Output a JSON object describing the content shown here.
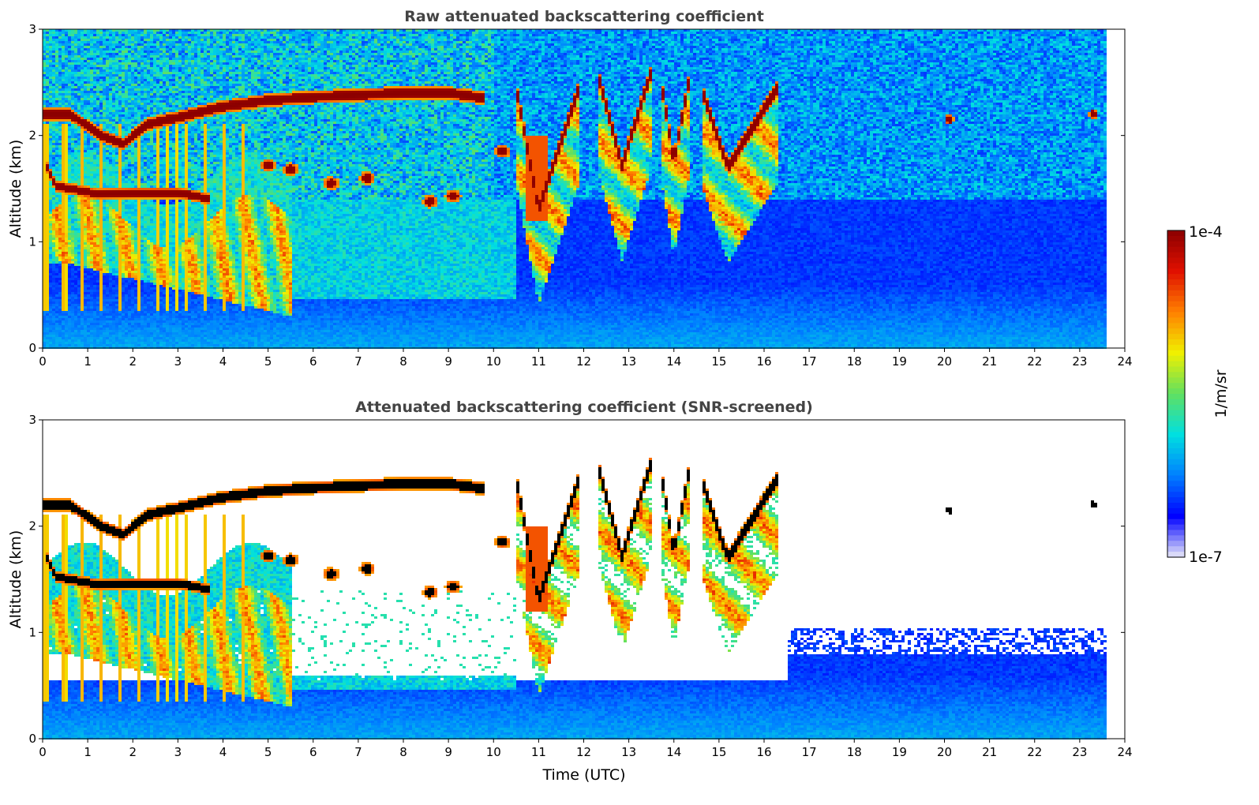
{
  "chart_data": [
    {
      "type": "heatmap",
      "title": "Raw attenuated backscattering coefficient",
      "xlabel": "",
      "ylabel": "Altitude (km)",
      "xlim": [
        0,
        24
      ],
      "ylim": [
        0,
        3
      ],
      "xticks": [
        "0",
        "1",
        "2",
        "3",
        "4",
        "5",
        "6",
        "7",
        "8",
        "9",
        "10",
        "11",
        "12",
        "13",
        "14",
        "15",
        "16",
        "17",
        "18",
        "19",
        "20",
        "21",
        "22",
        "23",
        "24"
      ],
      "yticks": [
        "0",
        "1",
        "2",
        "3"
      ],
      "data_end_time": 23.6,
      "screened": false,
      "cloud_layer": [
        [
          0,
          2.2
        ],
        [
          0.6,
          2.2
        ],
        [
          1.3,
          2.0
        ],
        [
          1.8,
          1.92
        ],
        [
          2.3,
          2.1
        ],
        [
          3.3,
          2.2
        ],
        [
          4,
          2.27
        ],
        [
          5,
          2.33
        ],
        [
          6,
          2.36
        ],
        [
          7,
          2.38
        ],
        [
          8,
          2.4
        ],
        [
          9,
          2.4
        ],
        [
          9.8,
          2.35
        ]
      ],
      "lower_layer": [
        [
          0.1,
          1.7
        ],
        [
          0.3,
          1.52
        ],
        [
          0.6,
          1.5
        ],
        [
          1.2,
          1.45
        ],
        [
          2,
          1.46
        ],
        [
          3,
          1.46
        ],
        [
          3.4,
          1.43
        ],
        [
          3.7,
          1.4
        ]
      ],
      "scattered_layer": [
        [
          5.0,
          1.72
        ],
        [
          5.5,
          1.68
        ],
        [
          6.4,
          1.55
        ],
        [
          7.2,
          1.6
        ],
        [
          8.6,
          1.38
        ],
        [
          9.1,
          1.43
        ],
        [
          10.2,
          1.85
        ]
      ],
      "cloud_dips": [
        {
          "start": 10.5,
          "mid": 11.0,
          "end": 11.9,
          "top": 2.45,
          "bottom": 1.3
        },
        {
          "start": 12.3,
          "mid": 12.85,
          "end": 13.5,
          "top": 2.6,
          "bottom": 1.72
        },
        {
          "start": 13.7,
          "mid": 14.0,
          "end": 14.35,
          "top": 2.55,
          "bottom": 1.75
        },
        {
          "start": 14.6,
          "mid": 15.2,
          "end": 16.3,
          "top": 2.45,
          "bottom": 1.7
        }
      ],
      "isolated_echoes": [
        [
          20.1,
          2.15
        ],
        [
          23.3,
          2.2
        ]
      ],
      "colors": {
        "background": "#ffffff",
        "strong_echo": "#8b0000"
      }
    },
    {
      "type": "heatmap",
      "title": "Attenuated backscattering coefficient (SNR-screened)",
      "xlabel": "Time (UTC)",
      "ylabel": "Altitude (km)",
      "xlim": [
        0,
        24
      ],
      "ylim": [
        0,
        3
      ],
      "xticks": [
        "0",
        "1",
        "2",
        "3",
        "4",
        "5",
        "6",
        "7",
        "8",
        "9",
        "10",
        "11",
        "12",
        "13",
        "14",
        "15",
        "16",
        "17",
        "18",
        "19",
        "20",
        "21",
        "22",
        "23",
        "24"
      ],
      "yticks": [
        "0",
        "1",
        "2",
        "3"
      ],
      "data_end_time": 23.6,
      "screened": true,
      "cloud_layer": [
        [
          0,
          2.2
        ],
        [
          0.6,
          2.2
        ],
        [
          1.3,
          2.0
        ],
        [
          1.8,
          1.92
        ],
        [
          2.3,
          2.1
        ],
        [
          3.3,
          2.2
        ],
        [
          4,
          2.27
        ],
        [
          5,
          2.33
        ],
        [
          6,
          2.36
        ],
        [
          7,
          2.38
        ],
        [
          8,
          2.4
        ],
        [
          9,
          2.4
        ],
        [
          9.8,
          2.35
        ]
      ],
      "lower_layer": [
        [
          0.1,
          1.7
        ],
        [
          0.3,
          1.52
        ],
        [
          0.6,
          1.5
        ],
        [
          1.2,
          1.45
        ],
        [
          2,
          1.46
        ],
        [
          3,
          1.46
        ],
        [
          3.4,
          1.43
        ],
        [
          3.7,
          1.4
        ]
      ],
      "scattered_layer": [
        [
          5.0,
          1.72
        ],
        [
          5.5,
          1.68
        ],
        [
          6.4,
          1.55
        ],
        [
          7.2,
          1.6
        ],
        [
          8.6,
          1.38
        ],
        [
          9.1,
          1.43
        ],
        [
          10.2,
          1.85
        ]
      ],
      "cloud_dips": [
        {
          "start": 10.5,
          "mid": 11.0,
          "end": 11.9,
          "top": 2.45,
          "bottom": 1.3
        },
        {
          "start": 12.3,
          "mid": 12.85,
          "end": 13.5,
          "top": 2.6,
          "bottom": 1.72
        },
        {
          "start": 13.7,
          "mid": 14.0,
          "end": 14.35,
          "top": 2.55,
          "bottom": 1.75
        },
        {
          "start": 14.6,
          "mid": 15.2,
          "end": 16.3,
          "top": 2.45,
          "bottom": 1.7
        }
      ],
      "isolated_echoes": [
        [
          20.1,
          2.15
        ],
        [
          23.3,
          2.2
        ]
      ],
      "colors": {
        "background": "#ffffff",
        "strong_echo": "#000000"
      }
    }
  ],
  "colorbar": {
    "label": "1/m/sr",
    "max_label": "1e-4",
    "min_label": "1e-7",
    "colormap": [
      "#e8e8f8",
      "#0000ff",
      "#0080ff",
      "#00e0e0",
      "#60e060",
      "#f0f000",
      "#ff8000",
      "#e01000",
      "#8b0000"
    ]
  }
}
